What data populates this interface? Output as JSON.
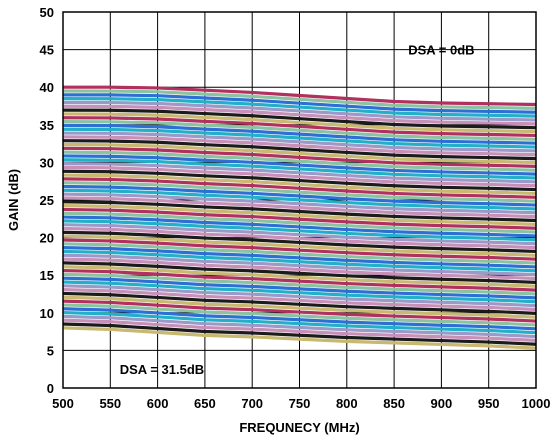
{
  "chart_data": {
    "type": "line",
    "title": "",
    "xlabel": "FREQUNECY (MHz)",
    "ylabel": "GAIN (dB)",
    "xlim": [
      500,
      1000
    ],
    "ylim": [
      0,
      50
    ],
    "x_ticks": [
      500,
      550,
      600,
      650,
      700,
      750,
      800,
      850,
      900,
      950,
      1000
    ],
    "y_ticks": [
      0,
      5,
      10,
      15,
      20,
      25,
      30,
      35,
      40,
      45,
      50
    ],
    "grid": true,
    "legend": "none",
    "annotations": [
      {
        "text": "DSA = 0dB",
        "x": 900,
        "y": 45
      },
      {
        "text": "DSA = 31.5dB",
        "x": 560,
        "y": 2.5
      }
    ],
    "series_family": {
      "name_pattern": "DSA setting",
      "count": 64,
      "step_db": 0.5,
      "x": [
        500,
        550,
        600,
        650,
        700,
        750,
        800,
        850,
        900,
        950,
        1000
      ],
      "top_curve": [
        40.0,
        40.0,
        39.9,
        39.6,
        39.3,
        38.9,
        38.5,
        38.1,
        37.9,
        37.8,
        37.7
      ],
      "bottom_curve": [
        8.0,
        7.8,
        7.4,
        7.0,
        6.8,
        6.5,
        6.2,
        6.0,
        5.8,
        5.6,
        5.3
      ],
      "color_cycle": [
        "#b03060",
        "#8bc3a0",
        "#2e6fd6",
        "#22b0c8",
        "#9a9ac8",
        "#c890b8",
        "#1b1b1b",
        "#c8b870"
      ]
    }
  }
}
